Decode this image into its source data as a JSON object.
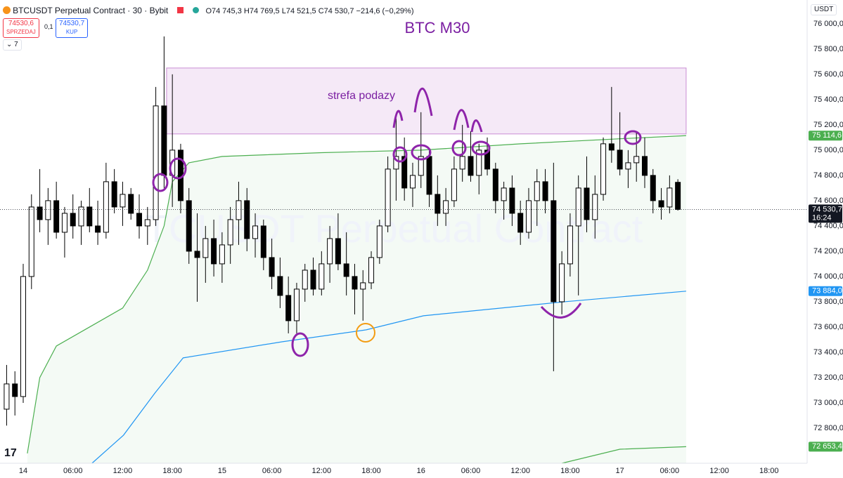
{
  "header": {
    "symbol": "BTCUSDT Perpetual Contract · 30 · Bybit",
    "open": "O74 745,3",
    "high": "H74 769,5",
    "low": "L74 521,5",
    "close": "C74 530,7",
    "change": "−214,6 (−0,29%)",
    "sell_price": "74530,6",
    "sell": "SPRZEDAJ",
    "spread": "0,1",
    "buy_price": "74530,7",
    "buy": "KUP",
    "indicators": "7",
    "currency": "USDT"
  },
  "chart_data": {
    "type": "candlestick",
    "title": "BTC M30",
    "watermark": "TCUSDT Perpetual Contract",
    "annotation": "strefa podazy",
    "zone": {
      "x": [
        17.3,
        80
      ],
      "y": [
        75128,
        75650
      ],
      "color": "#9c27b0"
    },
    "x": [
      -2,
      -1,
      0,
      1,
      2,
      3,
      4,
      5,
      6,
      7,
      8,
      9,
      10,
      11,
      12,
      13,
      14,
      15,
      16,
      17,
      18,
      19,
      20,
      21,
      22,
      23,
      24,
      25,
      26,
      27,
      28,
      29,
      30,
      31,
      32,
      33,
      34,
      35,
      36,
      37,
      38,
      39,
      40,
      41,
      42,
      43,
      44,
      45,
      46,
      47,
      48,
      49,
      50,
      51,
      52,
      53,
      54,
      55,
      56,
      57,
      58,
      59,
      60,
      61,
      62,
      63,
      64,
      65,
      66,
      67,
      68,
      69,
      70,
      71,
      72,
      73,
      74,
      75,
      76,
      77,
      78,
      79
    ],
    "open": [
      72950,
      73150,
      73050,
      74000,
      74550,
      74450,
      74600,
      74350,
      74500,
      74400,
      74550,
      74400,
      74350,
      74750,
      74550,
      74650,
      74500,
      74400,
      74450,
      75350,
      74800,
      75000,
      74600,
      74200,
      74150,
      74300,
      74100,
      74250,
      74450,
      74600,
      74300,
      74400,
      74150,
      74000,
      73850,
      73650,
      73900,
      74050,
      73900,
      74100,
      74300,
      74100,
      74000,
      73900,
      73950,
      74150,
      74400,
      74850,
      74950,
      74700,
      74800,
      74950,
      74650,
      74500,
      74600,
      74850,
      74950,
      74800,
      75000,
      74850,
      74600,
      74700,
      74500,
      74350,
      74600,
      74750,
      74600,
      73800,
      74100,
      74400,
      74700,
      74450,
      74650,
      75050,
      75000,
      74850,
      74900,
      74950,
      74800,
      74600,
      74550,
      74745.3
    ],
    "high": [
      73300,
      73250,
      74100,
      74650,
      74850,
      74700,
      74750,
      74550,
      74650,
      74600,
      74700,
      74600,
      74900,
      74850,
      74750,
      74700,
      74650,
      74550,
      75500,
      75900,
      75600,
      75050,
      74700,
      74500,
      74400,
      74450,
      74350,
      74550,
      74750,
      74700,
      74500,
      74450,
      74300,
      74150,
      74000,
      73950,
      74100,
      74150,
      74200,
      74400,
      74500,
      74350,
      74100,
      74050,
      74200,
      74450,
      74950,
      75250,
      75100,
      74900,
      75300,
      75000,
      74800,
      74700,
      74950,
      75200,
      75150,
      75050,
      75100,
      74900,
      74750,
      74800,
      74600,
      74700,
      74850,
      74850,
      74900,
      74200,
      74500,
      74800,
      74950,
      74800,
      75100,
      75500,
      75300,
      75000,
      75150,
      75100,
      74850,
      74700,
      74800,
      74769.5
    ],
    "low": [
      72820,
      72900,
      73000,
      73900,
      74350,
      74250,
      74300,
      74150,
      74300,
      74250,
      74350,
      74250,
      74300,
      74500,
      74400,
      74450,
      74300,
      74250,
      74400,
      74700,
      74550,
      74500,
      74100,
      73800,
      73950,
      74000,
      73950,
      74100,
      74250,
      74200,
      74150,
      74050,
      73900,
      73750,
      73550,
      73550,
      73800,
      73850,
      73850,
      73950,
      74050,
      73850,
      73700,
      73650,
      73900,
      74100,
      74350,
      74600,
      74600,
      74550,
      74700,
      74550,
      74400,
      74400,
      74550,
      74750,
      74750,
      74650,
      74800,
      74500,
      74450,
      74400,
      74250,
      74300,
      74400,
      74500,
      73250,
      73700,
      74000,
      73850,
      74350,
      74300,
      74600,
      74900,
      74800,
      74700,
      74750,
      74700,
      74500,
      74450,
      74500,
      74521.5
    ],
    "close": [
      73150,
      73050,
      74000,
      74550,
      74450,
      74600,
      74350,
      74500,
      74400,
      74550,
      74400,
      74350,
      74750,
      74550,
      74650,
      74500,
      74400,
      74450,
      75350,
      74800,
      75000,
      74600,
      74200,
      74150,
      74300,
      74100,
      74250,
      74450,
      74600,
      74300,
      74400,
      74150,
      74000,
      73850,
      73650,
      73900,
      74050,
      73900,
      74100,
      74300,
      74100,
      74000,
      73900,
      73950,
      74150,
      74400,
      74850,
      74950,
      74700,
      74800,
      74950,
      74650,
      74500,
      74600,
      74850,
      74950,
      74800,
      75000,
      74850,
      74600,
      74700,
      74500,
      74350,
      74600,
      74750,
      74600,
      73800,
      74100,
      74400,
      74700,
      74450,
      74650,
      75050,
      75000,
      74850,
      74900,
      74950,
      74800,
      74600,
      74550,
      74700,
      74530.7
    ],
    "series": [
      {
        "color": "#4caf50",
        "x": [
          0.5,
          2,
          4,
          8,
          12,
          15,
          17,
          18,
          20,
          24,
          36,
          48,
          60,
          72,
          80
        ],
        "values": [
          72600,
          73200,
          73450,
          73600,
          73750,
          74050,
          74400,
          74750,
          74900,
          74950,
          74980,
          75000,
          75050,
          75090,
          75114.6
        ]
      },
      {
        "color": "#2196f3",
        "x": [
          8.3,
          12.1,
          15.9,
          19.3,
          31.2,
          41.4,
          48.3,
          65.3,
          80
        ],
        "values": [
          72522,
          72744,
          73078,
          73356,
          73483,
          73578,
          73689,
          73800,
          73884
        ]
      },
      {
        "color": "#4caf50",
        "x": [
          65,
          72,
          80
        ],
        "values": [
          72522,
          72633,
          72653.4
        ]
      }
    ],
    "xlim": [
      -2.8,
      94.6
    ],
    "ylim": [
      72522,
      76188
    ],
    "xticks": [
      {
        "value": 0,
        "label": "14"
      },
      {
        "value": 6,
        "label": "06:00"
      },
      {
        "value": 12,
        "label": "12:00"
      },
      {
        "value": 18,
        "label": "18:00"
      },
      {
        "value": 24,
        "label": "15"
      },
      {
        "value": 30,
        "label": "06:00"
      },
      {
        "value": 36,
        "label": "12:00"
      },
      {
        "value": 42,
        "label": "18:00"
      },
      {
        "value": 48,
        "label": "16"
      },
      {
        "value": 54,
        "label": "06:00"
      },
      {
        "value": 60,
        "label": "12:00"
      },
      {
        "value": 66,
        "label": "18:00"
      },
      {
        "value": 72,
        "label": "17"
      },
      {
        "value": 78,
        "label": "06:00"
      },
      {
        "value": 84,
        "label": "12:00"
      },
      {
        "value": 90,
        "label": "18:00"
      }
    ],
    "yticks": [
      {
        "value": 72800,
        "label": "72 800,0"
      },
      {
        "value": 73000,
        "label": "73 000,0"
      },
      {
        "value": 73200,
        "label": "73 200,0"
      },
      {
        "value": 73400,
        "label": "73 400,0"
      },
      {
        "value": 73600,
        "label": "73 600,0"
      },
      {
        "value": 73800,
        "label": "73 800,0"
      },
      {
        "value": 74000,
        "label": "74 000,0"
      },
      {
        "value": 74200,
        "label": "74 200,0"
      },
      {
        "value": 74400,
        "label": "74 400,0"
      },
      {
        "value": 74600,
        "label": "74 600,0"
      },
      {
        "value": 74800,
        "label": "74 800,0"
      },
      {
        "value": 75000,
        "label": "75 000,0"
      },
      {
        "value": 75200,
        "label": "75 200,0"
      },
      {
        "value": 75400,
        "label": "75 400,0"
      },
      {
        "value": 75600,
        "label": "75 600,0"
      },
      {
        "value": 75800,
        "label": "75 800,0"
      },
      {
        "value": 76000,
        "label": "76 000,0"
      }
    ],
    "price_tags": [
      {
        "value": 74530.7,
        "label": "74 530,7",
        "sub": "16:24",
        "color": "#131722"
      },
      {
        "value": 75114.6,
        "label": "75 114,6",
        "color": "#4caf50"
      },
      {
        "value": 73884,
        "label": "73 884,0",
        "color": "#2196f3"
      },
      {
        "value": 72653.4,
        "label": "72 653,4",
        "color": "#4caf50"
      }
    ],
    "up_color": "#ffffff",
    "down_color": "#000000"
  }
}
